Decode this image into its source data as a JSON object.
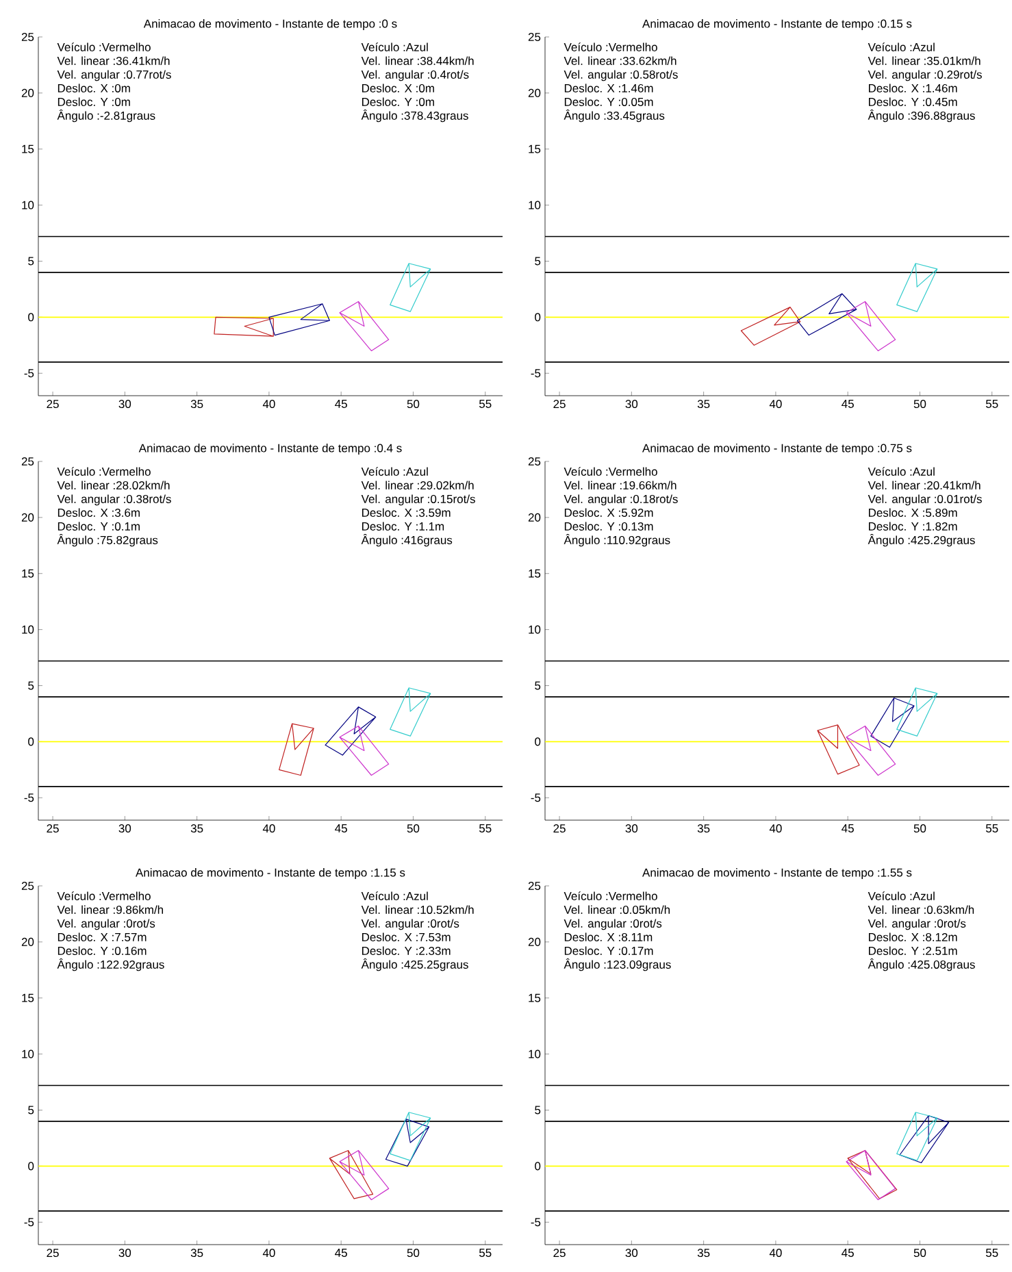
{
  "chart_data": [
    {
      "type": "line",
      "title": "Animacao de movimento  - Instante de tempo :0 s",
      "xlim": [
        24,
        56.2
      ],
      "ylim": [
        -7,
        25
      ],
      "xticks": [
        25,
        30,
        35,
        40,
        45,
        50,
        55
      ],
      "yticks": [
        -5,
        0,
        5,
        10,
        15,
        20,
        25
      ],
      "ref_lines": [
        {
          "axis": "y",
          "value": 7.2,
          "color": "#000000"
        },
        {
          "axis": "y",
          "value": 4,
          "color": "#000000"
        },
        {
          "axis": "y",
          "value": 0,
          "color": "#ffff00"
        },
        {
          "axis": "y",
          "value": -4,
          "color": "#000000"
        }
      ],
      "annotations": [
        "Veículo :Vermelho",
        "Vel. linear :36.41km/h",
        "Vel. angular :0.77rot/s",
        "Desloc. X :0m",
        "Desloc. Y :0m",
        "Ângulo :-2.81graus",
        "Veículo :Azul",
        "Vel. linear :38.44km/h",
        "Vel. angular :0.4rot/s",
        "Desloc. X :0m",
        "Desloc. Y :0m",
        "Ângulo :378.43graus"
      ],
      "series": [
        {
          "color": "#c02020",
          "x": [
            40.3,
            36.3,
            36.2,
            40.3,
            40.3,
            38.3,
            40.3
          ],
          "values": [
            -0.1,
            0,
            -1.5,
            -1.7,
            -0.1,
            -0.8,
            -1.7
          ]
        },
        {
          "color": "#000080",
          "x": [
            43.7,
            40,
            40.4,
            44.2,
            43.7,
            42.2,
            44.2
          ],
          "values": [
            1.2,
            0,
            -1.6,
            -0.3,
            1.2,
            -0.2,
            -0.3
          ]
        },
        {
          "color": "#cc33cc",
          "x": [
            44.9,
            47.1,
            48.3,
            46.2,
            44.9,
            46.6,
            46.2
          ],
          "values": [
            0.4,
            -3,
            -2,
            1.4,
            0.4,
            -0.8,
            1.4
          ]
        },
        {
          "color": "#33cccc",
          "x": [
            49.7,
            48.4,
            49.8,
            51.2,
            49.7,
            49.8,
            51.2
          ],
          "values": [
            4.8,
            1.1,
            0.5,
            4.3,
            4.8,
            2.7,
            4.3
          ]
        }
      ]
    },
    {
      "type": "line",
      "title": "Animacao de movimento  - Instante de tempo :0.15 s",
      "xlim": [
        24,
        56.2
      ],
      "ylim": [
        -7,
        25
      ],
      "xticks": [
        25,
        30,
        35,
        40,
        45,
        50,
        55
      ],
      "yticks": [
        -5,
        0,
        5,
        10,
        15,
        20,
        25
      ],
      "ref_lines": [
        {
          "axis": "y",
          "value": 7.2,
          "color": "#000000"
        },
        {
          "axis": "y",
          "value": 4,
          "color": "#000000"
        },
        {
          "axis": "y",
          "value": 0,
          "color": "#ffff00"
        },
        {
          "axis": "y",
          "value": -4,
          "color": "#000000"
        }
      ],
      "annotations": [
        "Veículo :Vermelho",
        "Vel. linear :33.62km/h",
        "Vel. angular :0.58rot/s",
        "Desloc. X :1.46m",
        "Desloc. Y :0.05m",
        "Ângulo :33.45graus",
        "Veículo :Azul",
        "Vel. linear :35.01km/h",
        "Vel. angular :0.29rot/s",
        "Desloc. X :1.46m",
        "Desloc. Y :0.45m",
        "Ângulo :396.88graus"
      ],
      "series": [
        {
          "color": "#c02020",
          "x": [
            41,
            37.6,
            38.5,
            41.7,
            41,
            39.9,
            41.7
          ],
          "values": [
            0.9,
            -1.2,
            -2.5,
            -0.4,
            0.9,
            -0.7,
            -0.4
          ]
        },
        {
          "color": "#000080",
          "x": [
            44.6,
            41.5,
            42.3,
            45.6,
            44.6,
            43.7,
            45.6
          ],
          "values": [
            2.1,
            -0.3,
            -1.6,
            0.7,
            2.1,
            0.3,
            0.7
          ]
        },
        {
          "color": "#cc33cc",
          "x": [
            44.9,
            47.1,
            48.3,
            46.2,
            44.9,
            46.6,
            46.2
          ],
          "values": [
            0.4,
            -3,
            -2,
            1.4,
            0.4,
            -0.8,
            1.4
          ]
        },
        {
          "color": "#33cccc",
          "x": [
            49.7,
            48.4,
            49.8,
            51.2,
            49.7,
            49.8,
            51.2
          ],
          "values": [
            4.8,
            1.1,
            0.5,
            4.3,
            4.8,
            2.7,
            4.3
          ]
        }
      ]
    },
    {
      "type": "line",
      "title": "Animacao de movimento  - Instante de tempo :0.4 s",
      "xlim": [
        24,
        56.2
      ],
      "ylim": [
        -7,
        25
      ],
      "xticks": [
        25,
        30,
        35,
        40,
        45,
        50,
        55
      ],
      "yticks": [
        -5,
        0,
        5,
        10,
        15,
        20,
        25
      ],
      "ref_lines": [
        {
          "axis": "y",
          "value": 7.2,
          "color": "#000000"
        },
        {
          "axis": "y",
          "value": 4,
          "color": "#000000"
        },
        {
          "axis": "y",
          "value": 0,
          "color": "#ffff00"
        },
        {
          "axis": "y",
          "value": -4,
          "color": "#000000"
        }
      ],
      "annotations": [
        "Veículo :Vermelho",
        "Vel. linear :28.02km/h",
        "Vel. angular :0.38rot/s",
        "Desloc. X :3.6m",
        "Desloc. Y :0.1m",
        "Ângulo :75.82graus",
        "Veículo :Azul",
        "Vel. linear :29.02km/h",
        "Vel. angular :0.15rot/s",
        "Desloc. X :3.59m",
        "Desloc. Y :1.1m",
        "Ângulo :416graus"
      ],
      "series": [
        {
          "color": "#c02020",
          "x": [
            41.6,
            40.7,
            42.2,
            43.1,
            41.6,
            41.8,
            43.1
          ],
          "values": [
            1.6,
            -2.5,
            -3,
            1.2,
            1.6,
            -0.7,
            1.2
          ]
        },
        {
          "color": "#000080",
          "x": [
            46.2,
            43.9,
            45.1,
            47.4,
            46.2,
            45.9,
            47.4
          ],
          "values": [
            3.1,
            -0.3,
            -1.2,
            2.2,
            3.1,
            0.7,
            2.2
          ]
        },
        {
          "color": "#cc33cc",
          "x": [
            44.9,
            47.1,
            48.3,
            46.2,
            44.9,
            46.6,
            46.2
          ],
          "values": [
            0.4,
            -3,
            -2,
            1.4,
            0.4,
            -0.8,
            1.4
          ]
        },
        {
          "color": "#33cccc",
          "x": [
            49.7,
            48.4,
            49.8,
            51.2,
            49.7,
            49.8,
            51.2
          ],
          "values": [
            4.8,
            1.1,
            0.5,
            4.3,
            4.8,
            2.7,
            4.3
          ]
        }
      ]
    },
    {
      "type": "line",
      "title": "Animacao de movimento  - Instante de tempo :0.75 s",
      "xlim": [
        24,
        56.2
      ],
      "ylim": [
        -7,
        25
      ],
      "xticks": [
        25,
        30,
        35,
        40,
        45,
        50,
        55
      ],
      "yticks": [
        -5,
        0,
        5,
        10,
        15,
        20,
        25
      ],
      "ref_lines": [
        {
          "axis": "y",
          "value": 7.2,
          "color": "#000000"
        },
        {
          "axis": "y",
          "value": 4,
          "color": "#000000"
        },
        {
          "axis": "y",
          "value": 0,
          "color": "#ffff00"
        },
        {
          "axis": "y",
          "value": -4,
          "color": "#000000"
        }
      ],
      "annotations": [
        "Veículo :Vermelho",
        "Vel. linear :19.66km/h",
        "Vel. angular :0.18rot/s",
        "Desloc. X :5.92m",
        "Desloc. Y :0.13m",
        "Ângulo :110.92graus",
        "Veículo :Azul",
        "Vel. linear :20.41km/h",
        "Vel. angular :0.01rot/s",
        "Desloc. X :5.89m",
        "Desloc. Y :1.82m",
        "Ângulo :425.29graus"
      ],
      "series": [
        {
          "color": "#c02020",
          "x": [
            42.9,
            44.3,
            45.8,
            44.3,
            42.9,
            44.3,
            44.3
          ],
          "values": [
            1,
            -2.9,
            -2.1,
            1.5,
            1,
            -0.6,
            1.5
          ]
        },
        {
          "color": "#000080",
          "x": [
            48.2,
            46.6,
            47.9,
            49.6,
            48.2,
            48.1,
            49.6
          ],
          "values": [
            3.9,
            0.5,
            -0.5,
            3.2,
            3.9,
            1.8,
            3.2
          ]
        },
        {
          "color": "#cc33cc",
          "x": [
            44.9,
            47.1,
            48.3,
            46.2,
            44.9,
            46.6,
            46.2
          ],
          "values": [
            0.4,
            -3,
            -2,
            1.4,
            0.4,
            -0.8,
            1.4
          ]
        },
        {
          "color": "#33cccc",
          "x": [
            49.7,
            48.4,
            49.8,
            51.2,
            49.7,
            49.8,
            51.2
          ],
          "values": [
            4.8,
            1.1,
            0.5,
            4.3,
            4.8,
            2.7,
            4.3
          ]
        }
      ]
    },
    {
      "type": "line",
      "title": "Animacao de movimento  - Instante de tempo :1.15 s",
      "xlim": [
        24,
        56.2
      ],
      "ylim": [
        -7,
        25
      ],
      "xticks": [
        25,
        30,
        35,
        40,
        45,
        50,
        55
      ],
      "yticks": [
        -5,
        0,
        5,
        10,
        15,
        20,
        25
      ],
      "ref_lines": [
        {
          "axis": "y",
          "value": 7.2,
          "color": "#000000"
        },
        {
          "axis": "y",
          "value": 4,
          "color": "#000000"
        },
        {
          "axis": "y",
          "value": 0,
          "color": "#ffff00"
        },
        {
          "axis": "y",
          "value": -4,
          "color": "#000000"
        }
      ],
      "annotations": [
        "Veículo :Vermelho",
        "Vel. linear :9.86km/h",
        "Vel. angular :0rot/s",
        "Desloc. X :7.57m",
        "Desloc. Y :0.16m",
        "Ângulo :122.92graus",
        "Veículo :Azul",
        "Vel. linear :10.52km/h",
        "Vel. angular :0rot/s",
        "Desloc. X :7.53m",
        "Desloc. Y :2.33m",
        "Ângulo :425.25graus"
      ],
      "series": [
        {
          "color": "#c02020",
          "x": [
            44.2,
            45.9,
            47.2,
            45.5,
            44.2,
            45.6,
            45.5
          ],
          "values": [
            0.7,
            -2.9,
            -2.5,
            1.4,
            0.7,
            -0.7,
            1.4
          ]
        },
        {
          "color": "#000080",
          "x": [
            49.5,
            48.1,
            49.6,
            51.1,
            49.5,
            49.8,
            51.1
          ],
          "values": [
            4.2,
            0.6,
            0,
            3.5,
            4.2,
            2.1,
            3.5
          ]
        },
        {
          "color": "#cc33cc",
          "x": [
            44.9,
            47.1,
            48.3,
            46.2,
            44.9,
            46.6,
            46.2
          ],
          "values": [
            0.4,
            -3,
            -2,
            1.4,
            0.4,
            -0.8,
            1.4
          ]
        },
        {
          "color": "#33cccc",
          "x": [
            49.7,
            48.4,
            49.8,
            51.2,
            49.7,
            49.8,
            51.2
          ],
          "values": [
            4.8,
            1.1,
            0.5,
            4.3,
            4.8,
            2.7,
            4.3
          ]
        }
      ]
    },
    {
      "type": "line",
      "title": "Animacao de movimento  - Instante de tempo :1.55 s",
      "xlim": [
        24,
        56.2
      ],
      "ylim": [
        -7,
        25
      ],
      "xticks": [
        25,
        30,
        35,
        40,
        45,
        50,
        55
      ],
      "yticks": [
        -5,
        0,
        5,
        10,
        15,
        20,
        25
      ],
      "ref_lines": [
        {
          "axis": "y",
          "value": 7.2,
          "color": "#000000"
        },
        {
          "axis": "y",
          "value": 4,
          "color": "#000000"
        },
        {
          "axis": "y",
          "value": 0,
          "color": "#ffff00"
        },
        {
          "axis": "y",
          "value": -4,
          "color": "#000000"
        }
      ],
      "annotations": [
        "Veículo :Vermelho",
        "Vel. linear :0.05km/h",
        "Vel. angular :0rot/s",
        "Desloc. X :8.11m",
        "Desloc. Y :0.17m",
        "Ângulo :123.09graus",
        "Veículo :Azul",
        "Vel. linear :0.63km/h",
        "Vel. angular :0rot/s",
        "Desloc. X :8.12m",
        "Desloc. Y :2.51m",
        "Ângulo :425.08graus"
      ],
      "series": [
        {
          "color": "#c02020",
          "x": [
            45,
            47.2,
            48.4,
            46.2,
            45,
            46.6,
            46.2
          ],
          "values": [
            0.7,
            -2.9,
            -2.1,
            1.4,
            0.7,
            -0.7,
            1.4
          ]
        },
        {
          "color": "#000080",
          "x": [
            50.6,
            48.6,
            50.1,
            52,
            50.6,
            50.6,
            52
          ],
          "values": [
            4.5,
            1,
            0.3,
            3.9,
            4.5,
            2,
            3.9
          ]
        },
        {
          "color": "#cc33cc",
          "x": [
            44.9,
            47.1,
            48.3,
            46.2,
            44.9,
            46.6,
            46.2
          ],
          "values": [
            0.4,
            -3,
            -2,
            1.4,
            0.4,
            -0.8,
            1.4
          ]
        },
        {
          "color": "#33cccc",
          "x": [
            49.7,
            48.4,
            49.8,
            51.2,
            49.7,
            49.8,
            51.2
          ],
          "values": [
            4.8,
            1.1,
            0.5,
            4.3,
            4.8,
            2.7,
            4.3
          ]
        }
      ]
    }
  ]
}
